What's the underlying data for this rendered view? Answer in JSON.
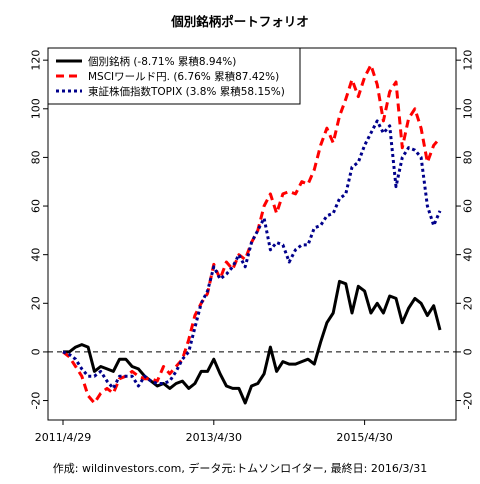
{
  "chart_data": {
    "type": "line",
    "title": "個別銘柄ポートフォリオ",
    "caption": "作成: wildinvestors.com, データ元:トムソンロイター, 最終日: 2016/3/31",
    "xlabel": "",
    "ylabel": "",
    "x_tick_labels": [
      "2011/4/29",
      "2013/4/30",
      "2015/4/30"
    ],
    "x_tick_index": [
      0,
      24,
      48
    ],
    "ylim": [
      -28,
      125
    ],
    "y_ticks": [
      -20,
      0,
      20,
      40,
      60,
      80,
      100,
      120
    ],
    "y_tick_labels": [
      "-20",
      "0",
      "20",
      "40",
      "60",
      "80",
      "100",
      "120"
    ],
    "reference_line": 0,
    "grid": false,
    "legend_position": "top-left",
    "series": [
      {
        "name": "個別銘柄 (-8.71% 累積8.94%)",
        "color": "#000000",
        "dash": "solid",
        "values": [
          0,
          0,
          2,
          3,
          2,
          -8,
          -6,
          -7,
          -8,
          -3,
          -3,
          -6,
          -7,
          -10,
          -12,
          -14,
          -13,
          -15,
          -13,
          -12,
          -15,
          -13,
          -8,
          -8,
          -3,
          -9,
          -14,
          -15,
          -15,
          -21,
          -14,
          -13,
          -9,
          2,
          -8,
          -4,
          -5,
          -5,
          -4,
          -3,
          -5,
          4,
          12,
          16,
          29,
          28,
          16,
          27,
          25,
          16,
          20,
          16,
          23,
          22,
          12,
          18,
          22,
          20,
          15,
          19,
          9
        ]
      },
      {
        "name": "MSCIワールド円. (6.76% 累積87.42%)",
        "color": "#ff0000",
        "dash": "8,5",
        "values": [
          0,
          -2,
          -6,
          -10,
          -18,
          -21,
          -17,
          -15,
          -17,
          -11,
          -10,
          -8,
          -10,
          -11,
          -11,
          -12,
          -6,
          -9,
          -6,
          -3,
          5,
          15,
          20,
          24,
          36,
          30,
          37,
          34,
          40,
          38,
          45,
          50,
          60,
          65,
          57,
          65,
          66,
          65,
          70,
          69,
          75,
          85,
          92,
          86,
          97,
          104,
          112,
          105,
          113,
          118,
          110,
          95,
          107,
          111,
          84,
          96,
          100,
          92,
          78,
          85,
          88
        ]
      },
      {
        "name": "東証株価指数TOPIX (3.8% 累積58.15%)",
        "color": "#00008b",
        "dash": "3,3",
        "values": [
          0,
          -1,
          -3,
          -7,
          -10,
          -10,
          -8,
          -12,
          -15,
          -10,
          -10,
          -10,
          -14,
          -10,
          -12,
          -13,
          -13,
          -12,
          -8,
          -3,
          0,
          10,
          20,
          25,
          35,
          30,
          32,
          35,
          40,
          35,
          45,
          50,
          55,
          42,
          45,
          44,
          37,
          42,
          44,
          44,
          51,
          52,
          56,
          57,
          63,
          65,
          76,
          78,
          85,
          90,
          95,
          90,
          93,
          68,
          80,
          84,
          83,
          80,
          60,
          52,
          58
        ]
      }
    ]
  }
}
